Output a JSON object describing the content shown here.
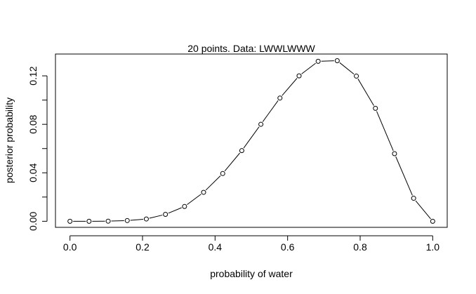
{
  "chart_data": {
    "type": "line",
    "title": "20 points. Data: LWWLWWW",
    "xlabel": "probability of water",
    "ylabel": "posterior probability",
    "xlim": [
      -0.04,
      1.04
    ],
    "ylim": [
      -0.005,
      0.138
    ],
    "x_ticks": [
      "0.0",
      "0.2",
      "0.4",
      "0.6",
      "0.8",
      "1.0"
    ],
    "y_ticks": [
      "0.00",
      "0.04",
      "0.08",
      "0.12"
    ],
    "x_tick_values": [
      0.0,
      0.2,
      0.4,
      0.6,
      0.8,
      1.0
    ],
    "y_tick_values": [
      0.0,
      0.04,
      0.08,
      0.12
    ],
    "series": [
      {
        "x": [
          0.0,
          0.0526,
          0.1053,
          0.1579,
          0.2105,
          0.2632,
          0.3158,
          0.3684,
          0.4211,
          0.4737,
          0.5263,
          0.5789,
          0.6316,
          0.6842,
          0.7368,
          0.7895,
          0.8421,
          0.8947,
          0.9474,
          1.0
        ],
        "y": [
          0.0,
          0.0,
          0.0001,
          0.0006,
          0.0019,
          0.0057,
          0.0122,
          0.0239,
          0.0394,
          0.0583,
          0.08,
          0.1017,
          0.12,
          0.132,
          0.1325,
          0.1198,
          0.0932,
          0.0558,
          0.019,
          0.0
        ]
      }
    ],
    "grid": false,
    "legend": "none"
  }
}
